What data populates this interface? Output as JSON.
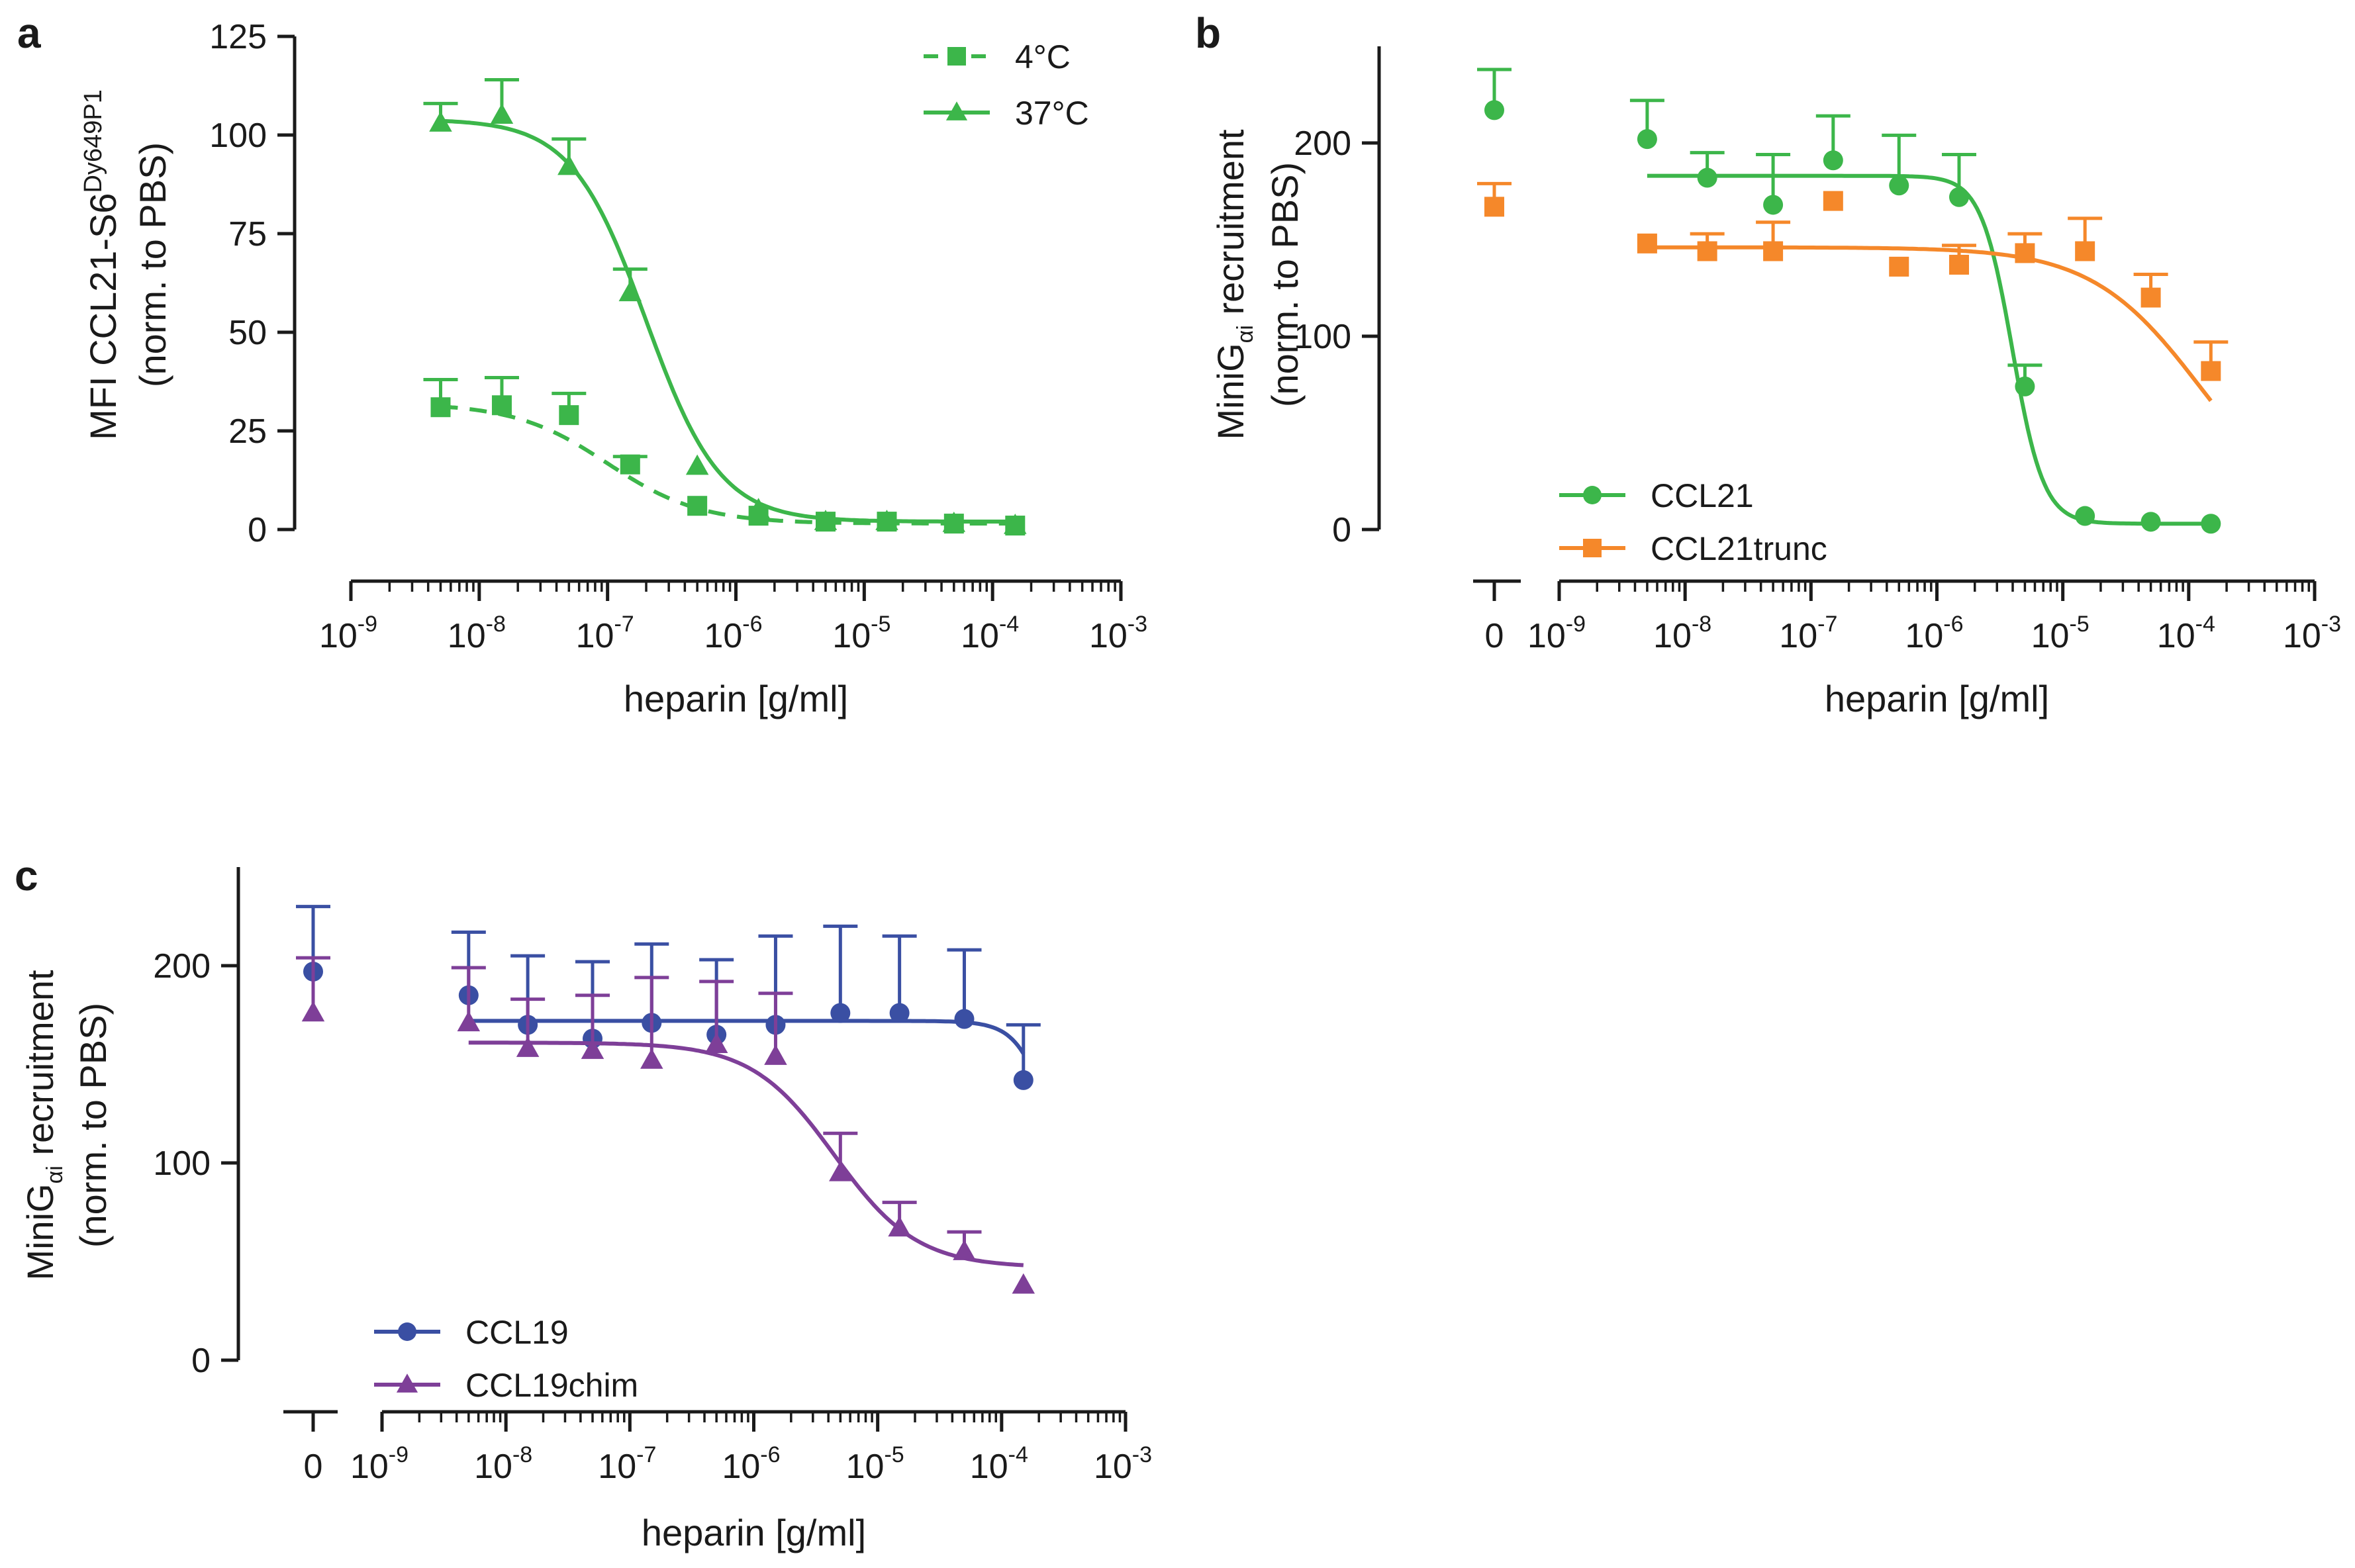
{
  "chart_data": [
    {
      "panel": "a",
      "type": "line",
      "xlabel": "heparin [g/ml]",
      "xscale": "log",
      "xlim": [
        1e-09,
        0.001
      ],
      "xticks": [
        "-9",
        "-8",
        "-7",
        "-6",
        "-5",
        "-4",
        "-3"
      ],
      "ylabel_line1": "MFI CCL21-S6",
      "ylabel_sup": "Dy649P1",
      "ylabel_line2": "(norm. to PBS)",
      "ylim": [
        0,
        125
      ],
      "yticks": [
        0,
        25,
        50,
        75,
        100,
        125
      ],
      "legend_position": "top-right",
      "series": [
        {
          "name": "4°C",
          "color": "#3cb64a",
          "marker": "square",
          "dashed": true,
          "x": [
            5e-09,
            1.5e-08,
            5e-08,
            1.5e-07,
            5e-07,
            1.5e-06,
            5e-06,
            1.5e-05,
            5e-05,
            0.00015
          ],
          "y": [
            31,
            31.5,
            29,
            16.5,
            6,
            3.5,
            2,
            2,
            1.5,
            1
          ],
          "err": [
            7,
            7,
            5.5,
            2,
            0,
            0,
            0,
            0,
            0,
            0
          ],
          "fit": {
            "top": 32,
            "bottom": 1.5,
            "log_ec50": -7.0,
            "hill": 1.2
          }
        },
        {
          "name": "37°C",
          "color": "#3cb64a",
          "marker": "triangle",
          "dashed": false,
          "x": [
            5e-09,
            1.5e-08,
            5e-08,
            1.5e-07,
            5e-07,
            1.5e-06,
            5e-06,
            1.5e-05,
            5e-05,
            0.00015
          ],
          "y": [
            103,
            105,
            92,
            60,
            16,
            5,
            2,
            2,
            1.5,
            1
          ],
          "err": [
            5,
            9,
            7,
            6,
            0,
            0,
            0,
            0,
            0,
            0
          ],
          "fit": {
            "top": 104,
            "bottom": 2,
            "log_ec50": -6.7,
            "hill": 1.5
          }
        }
      ]
    },
    {
      "panel": "b",
      "type": "line",
      "xlabel": "heparin [g/ml]",
      "xscale": "log",
      "xlim": [
        1e-09,
        0.001
      ],
      "xticks": [
        "-9",
        "-8",
        "-7",
        "-6",
        "-5",
        "-4",
        "-3"
      ],
      "zero_label": "0",
      "ylabel_line1_a": "MiniG",
      "ylabel_line1_sub": "αi",
      "ylabel_line1_b": " recruitment",
      "ylabel_line2": "(norm. to  PBS)",
      "ylim": [
        0,
        250
      ],
      "yticks": [
        0,
        100,
        200
      ],
      "legend_position": "bottom-left",
      "series": [
        {
          "name": "CCL21",
          "color": "#3cb64a",
          "marker": "circle",
          "zero_y": 217,
          "zero_err": 21,
          "x": [
            5e-09,
            1.5e-08,
            5e-08,
            1.5e-07,
            5e-07,
            1.5e-06,
            5e-06,
            1.5e-05,
            5e-05,
            0.00015
          ],
          "y": [
            202,
            182,
            168,
            191,
            178,
            172,
            74,
            7,
            4,
            3
          ],
          "err": [
            20,
            13,
            26,
            23,
            26,
            22,
            11,
            0,
            0,
            0
          ],
          "fit": {
            "top": 183,
            "bottom": 3,
            "log_ec50": -5.4,
            "hill": 3.5
          }
        },
        {
          "name": "CCL21trunc",
          "color": "#f5882a",
          "marker": "square",
          "zero_y": 167,
          "zero_err": 12,
          "x": [
            5e-09,
            1.5e-08,
            5e-08,
            1.5e-07,
            5e-07,
            1.5e-06,
            5e-06,
            1.5e-05,
            5e-05,
            0.00015
          ],
          "y": [
            148,
            144,
            144,
            170,
            136,
            137,
            143,
            144,
            120,
            82
          ],
          "err": [
            0,
            9,
            15,
            0,
            0,
            10,
            10,
            17,
            12,
            15
          ],
          "fit": {
            "top": 146,
            "bottom": 0,
            "log_ec50": -3.9,
            "hill": 1.0
          }
        }
      ]
    },
    {
      "panel": "c",
      "type": "line",
      "xlabel": "heparin [g/ml]",
      "xscale": "log",
      "xlim": [
        1e-09,
        0.001
      ],
      "xticks": [
        "-9",
        "-8",
        "-7",
        "-6",
        "-5",
        "-4",
        "-3"
      ],
      "zero_label": "0",
      "ylabel_line1_a": "MiniG",
      "ylabel_line1_sub": "αi",
      "ylabel_line1_b": " recruitment",
      "ylabel_line2": "(norm. to  PBS)",
      "ylim": [
        0,
        250
      ],
      "yticks": [
        0,
        100,
        200
      ],
      "legend_position": "bottom-left",
      "series": [
        {
          "name": "CCL19",
          "color": "#3a4fa3",
          "marker": "circle",
          "zero_y": 197,
          "zero_err": 33,
          "x": [
            5e-09,
            1.5e-08,
            5e-08,
            1.5e-07,
            5e-07,
            1.5e-06,
            5e-06,
            1.5e-05,
            5e-05,
            0.00015
          ],
          "y": [
            185,
            170,
            163,
            171,
            165,
            170,
            176,
            176,
            173,
            142
          ],
          "err": [
            32,
            35,
            39,
            40,
            38,
            45,
            44,
            39,
            35,
            28
          ],
          "fit": {
            "top": 172,
            "bottom": 0,
            "log_ec50": -3.5,
            "hill": 3.0
          }
        },
        {
          "name": "CCL19chim",
          "color": "#7e3f98",
          "marker": "triangle",
          "zero_y": 176,
          "zero_err": 28,
          "x": [
            5e-09,
            1.5e-08,
            5e-08,
            1.5e-07,
            5e-07,
            1.5e-06,
            5e-06,
            1.5e-05,
            5e-05,
            0.00015
          ],
          "y": [
            171,
            158,
            157,
            152,
            160,
            154,
            95,
            67,
            55,
            38
          ],
          "err": [
            28,
            25,
            28,
            42,
            32,
            32,
            20,
            13,
            10,
            0
          ],
          "fit": {
            "top": 161,
            "bottom": 47,
            "log_ec50": -5.35,
            "hill": 1.3
          }
        }
      ]
    }
  ]
}
